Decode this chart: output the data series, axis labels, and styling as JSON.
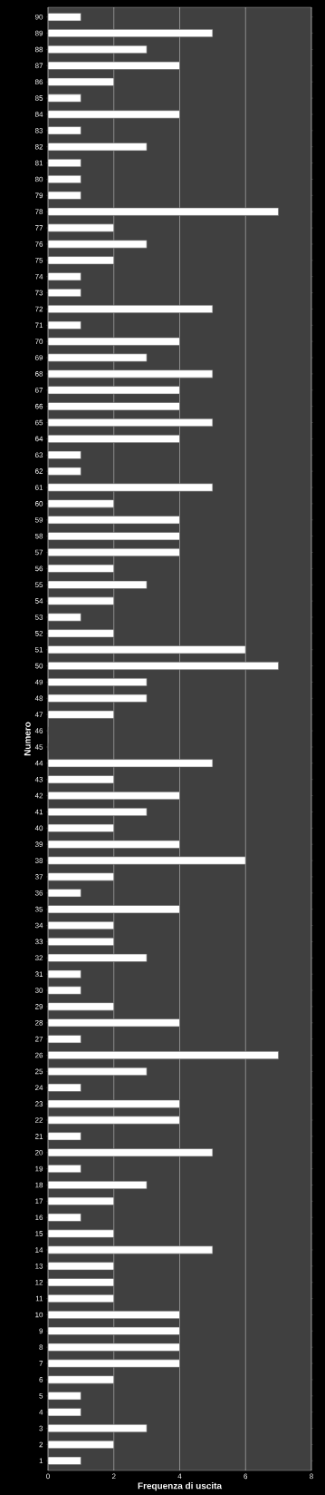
{
  "chart_data": {
    "type": "bar",
    "orientation": "horizontal",
    "xlabel": "Frequenza di uscita",
    "ylabel": "Numero",
    "categories": [
      "90",
      "89",
      "88",
      "87",
      "86",
      "85",
      "84",
      "83",
      "82",
      "81",
      "80",
      "79",
      "78",
      "77",
      "76",
      "75",
      "74",
      "73",
      "72",
      "71",
      "70",
      "69",
      "68",
      "67",
      "66",
      "65",
      "64",
      "63",
      "62",
      "61",
      "60",
      "59",
      "58",
      "57",
      "56",
      "55",
      "54",
      "53",
      "52",
      "51",
      "50",
      "49",
      "48",
      "47",
      "46",
      "45",
      "44",
      "43",
      "42",
      "41",
      "40",
      "39",
      "38",
      "37",
      "36",
      "35",
      "34",
      "33",
      "32",
      "31",
      "30",
      "29",
      "28",
      "27",
      "26",
      "25",
      "24",
      "23",
      "22",
      "21",
      "20",
      "19",
      "18",
      "17",
      "16",
      "15",
      "14",
      "13",
      "12",
      "11",
      "10",
      "9",
      "8",
      "7",
      "6",
      "5",
      "4",
      "3",
      "2",
      "1"
    ],
    "values": [
      1,
      5,
      3,
      4,
      2,
      1,
      4,
      1,
      3,
      1,
      1,
      1,
      7,
      2,
      3,
      2,
      1,
      1,
      5,
      1,
      4,
      3,
      5,
      4,
      4,
      5,
      4,
      1,
      1,
      5,
      2,
      4,
      4,
      4,
      2,
      3,
      2,
      1,
      2,
      6,
      7,
      3,
      3,
      2,
      0,
      0,
      5,
      2,
      4,
      3,
      2,
      4,
      6,
      2,
      1,
      4,
      2,
      2,
      3,
      1,
      1,
      2,
      4,
      1,
      7,
      3,
      1,
      4,
      4,
      1,
      5,
      1,
      3,
      2,
      1,
      2,
      5,
      2,
      2,
      2,
      4,
      4,
      4,
      4,
      2,
      1,
      1,
      3,
      2,
      1
    ],
    "color": "#ffffff",
    "xlim": [
      0,
      8
    ],
    "xticks": [
      0,
      2,
      4,
      6,
      8
    ],
    "grid": "x"
  }
}
